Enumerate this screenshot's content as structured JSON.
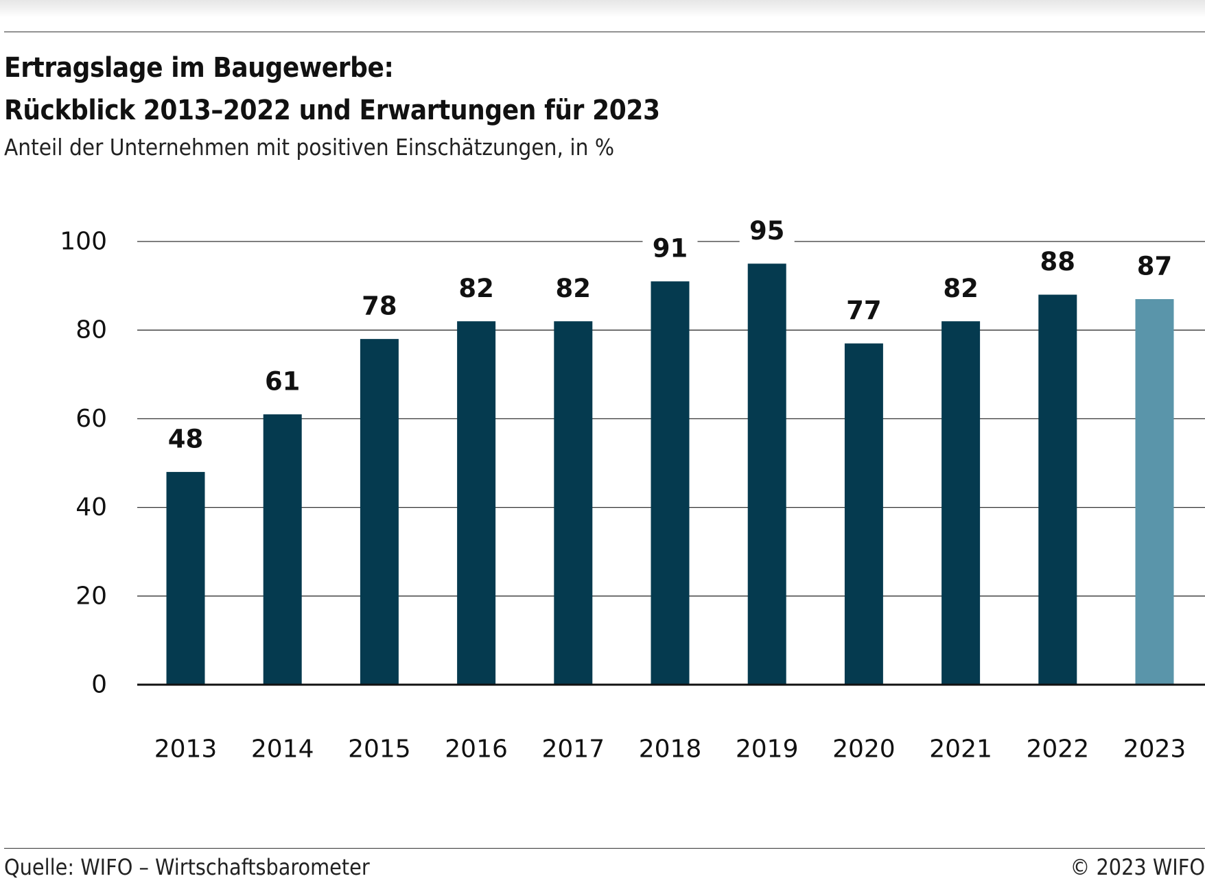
{
  "header": {
    "title_line1": "Ertragslage im Baugewerbe:",
    "title_line2": "Rückblick 2013–2022 und Erwartungen für 2023",
    "subtitle": "Anteil der Unternehmen mit positiven Einschätzungen, in %"
  },
  "footer": {
    "source": "Quelle: WIFO – Wirtschaftsbarometer",
    "copyright": "© 2023 WIFO"
  },
  "chart_data": {
    "type": "bar",
    "categories": [
      "2013",
      "2014",
      "2015",
      "2016",
      "2017",
      "2018",
      "2019",
      "2020",
      "2021",
      "2022",
      "2023"
    ],
    "values": [
      48,
      61,
      78,
      82,
      82,
      91,
      95,
      77,
      82,
      88,
      87
    ],
    "data_labels": [
      "48",
      "61",
      "78",
      "82",
      "82",
      "91",
      "95",
      "77",
      "82",
      "88",
      "87"
    ],
    "ylim": [
      0,
      100
    ],
    "yticks": [
      0,
      20,
      40,
      60,
      80,
      100
    ],
    "grid": true,
    "xlabel": "",
    "ylabel": "",
    "colors": {
      "actual": "#053a4f",
      "expectation": "#5a95aa",
      "grid": "#333333",
      "axis": "#111111",
      "text": "#111111"
    },
    "highlighted_category": "2023"
  }
}
